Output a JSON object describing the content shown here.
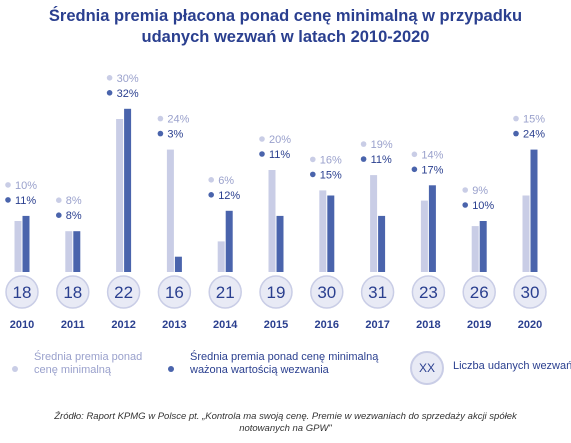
{
  "title": {
    "line1": "Średnia premia płacona ponad cenę minimalną w przypadku",
    "line2": "udanych wezwań w latach 2010-2020"
  },
  "colors": {
    "median": "#c9cde6",
    "weighted": "#4a64ac",
    "title": "#2a3f8f",
    "circle_fill": "#e8eaf5",
    "circle_border": "#c9cde6"
  },
  "chart_data": {
    "type": "bar",
    "title": "Średnia premia płacona ponad cenę minimalną w przypadku udanych wezwań w latach 2010-2020",
    "categories": [
      "2010",
      "2011",
      "2012",
      "2013",
      "2014",
      "2015",
      "2016",
      "2017",
      "2018",
      "2019",
      "2020"
    ],
    "series": [
      {
        "name": "Średnia premia ponad cenę minimalną",
        "values": [
          10,
          8,
          30,
          24,
          6,
          20,
          16,
          19,
          14,
          9,
          15
        ]
      },
      {
        "name": "Średnia premia ponad cenę minimalną ważona wartością wezwania",
        "values": [
          11,
          8,
          32,
          3,
          12,
          11,
          15,
          11,
          17,
          10,
          24
        ]
      }
    ],
    "counts_name": "Liczba udanych wezwań",
    "counts": [
      18,
      18,
      22,
      16,
      21,
      19,
      30,
      31,
      23,
      26,
      30
    ],
    "value_suffix": "%",
    "legend_placement": "bottom",
    "grid": false
  },
  "legend": {
    "median_line1": "Średnia premia ponad",
    "median_line2": "cenę minimalną",
    "weighted_line1": "Średnia premia ponad cenę minimalną",
    "weighted_line2": "ważona wartością wezwania",
    "count_symbol": "XX",
    "count_label": "Liczba udanych wezwań"
  },
  "source": {
    "line1": "Źródło: Raport KPMG w Polsce pt. „Kontrola ma swoją cenę. Premie w wezwaniach do sprzedaży akcji spółek",
    "line2": "notowanych na GPW\""
  }
}
